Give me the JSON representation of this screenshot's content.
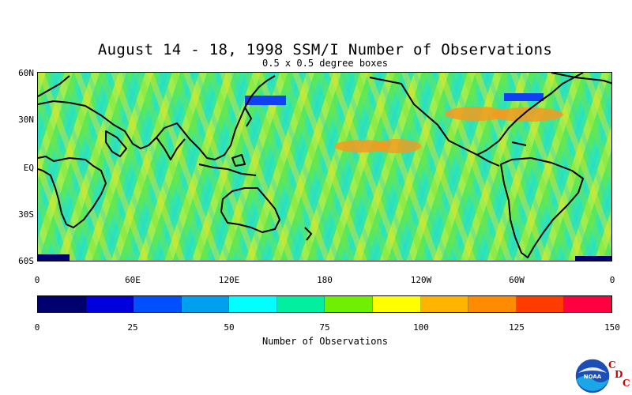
{
  "header": {
    "title": "August 14 - 18, 1998 SSM/I Number of Observations",
    "subtitle": "0.5 x 0.5 degree boxes"
  },
  "map": {
    "lat_labels": [
      "60N",
      "30N",
      "EQ",
      "30S",
      "60S"
    ],
    "lon_labels": [
      "0",
      "60E",
      "120E",
      "180",
      "120W",
      "60W",
      "0"
    ],
    "background_color": "#39e6a0",
    "coastline_color": "#000000",
    "description_fields": {
      "swath_colors": [
        "#6fe830",
        "#f2f20c",
        "#14e0e6"
      ],
      "high_density_color": "#f49a20",
      "low_density_color": "#1040f0"
    }
  },
  "colorbar": {
    "label": "Number of Observations",
    "ticks": [
      "0",
      "25",
      "50",
      "75",
      "100",
      "125",
      "150"
    ],
    "colors": [
      "#00006e",
      "#0000dc",
      "#0050ff",
      "#00a0f0",
      "#00ffff",
      "#00f0a0",
      "#6ef000",
      "#ffff00",
      "#ffb400",
      "#ff8c00",
      "#ff3c00",
      "#ff0040"
    ]
  },
  "logo": {
    "name": "NOAA",
    "letters": [
      "C",
      "D",
      "C"
    ]
  }
}
